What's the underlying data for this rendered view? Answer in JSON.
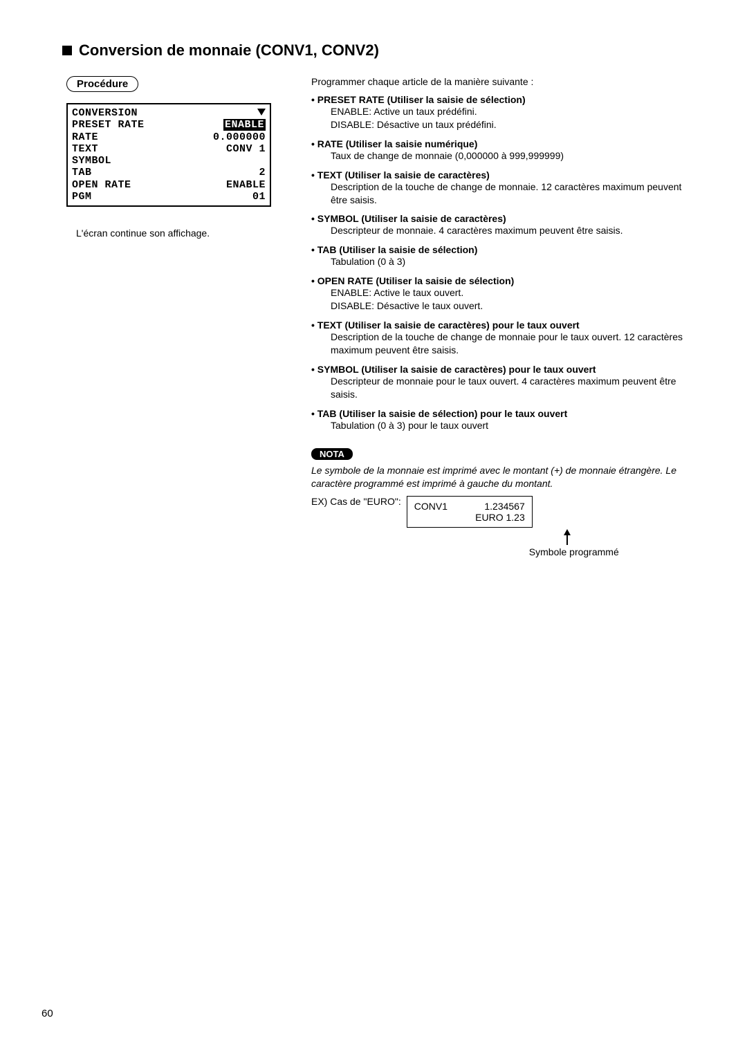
{
  "section_title": "Conversion de monnaie (CONV1, CONV2)",
  "procedure_label": "Procédure",
  "lcd": {
    "rows": [
      {
        "left": "CONVERSION",
        "right_type": "tri"
      },
      {
        "left": "PRESET RATE",
        "right": "ENABLE",
        "right_inverse": true
      },
      {
        "left": "RATE",
        "right": "0.000000"
      },
      {
        "left": "TEXT",
        "right": "CONV 1"
      },
      {
        "left": "SYMBOL",
        "right": ""
      },
      {
        "left": "TAB",
        "right": "2"
      },
      {
        "left": "OPEN RATE",
        "right": "ENABLE"
      },
      {
        "left": "PGM",
        "right": "01"
      }
    ]
  },
  "lcd_caption": "L'écran continue son affichage.",
  "intro": "Programmer chaque article de la manière suivante :",
  "items": [
    {
      "head": "• PRESET RATE (Utiliser la saisie de sélection)",
      "lines": [
        "ENABLE:  Active un taux prédéfini.",
        "DISABLE: Désactive un taux prédéfini."
      ]
    },
    {
      "head": "• RATE (Utiliser la saisie numérique)",
      "lines": [
        "Taux de change de monnaie (0,000000 à 999,999999)"
      ]
    },
    {
      "head": "• TEXT (Utiliser la saisie de caractères)",
      "lines": [
        "Description de la touche de change de monnaie. 12 caractères maximum peuvent être saisis."
      ]
    },
    {
      "head": "• SYMBOL (Utiliser la saisie de caractères)",
      "lines": [
        "Descripteur de monnaie. 4 caractères maximum peuvent être saisis."
      ]
    },
    {
      "head": "• TAB (Utiliser la saisie de sélection)",
      "lines": [
        "Tabulation (0 à 3)"
      ]
    },
    {
      "head": "• OPEN RATE (Utiliser la saisie de sélection)",
      "lines": [
        "ENABLE:  Active le taux ouvert.",
        "DISABLE: Désactive le taux ouvert."
      ]
    },
    {
      "head": "• TEXT (Utiliser la saisie de caractères) pour le taux ouvert",
      "lines": [
        "Description de la touche de change de monnaie pour le taux ouvert. 12 caractères maximum peuvent être saisis."
      ]
    },
    {
      "head": "• SYMBOL (Utiliser la saisie de caractères) pour le taux ouvert",
      "lines": [
        "Descripteur de monnaie pour le taux ouvert. 4 caractères maximum peuvent être saisis."
      ]
    },
    {
      "head": "• TAB (Utiliser la saisie de sélection) pour le taux ouvert",
      "lines": [
        "Tabulation (0 à 3) pour le taux ouvert"
      ]
    }
  ],
  "nota_label": "NOTA",
  "nota_text": "Le symbole de la monnaie est imprimé avec le montant (+) de monnaie étrangère. Le caractère programmé est imprimé à gauche du montant.",
  "example": {
    "label": "EX) Cas de \"EURO\":",
    "box": {
      "l1_left": "CONV1",
      "l1_right": "1.234567",
      "l2": "EURO 1.23"
    },
    "arrow_caption": "Symbole programmé"
  },
  "page_number": "60"
}
